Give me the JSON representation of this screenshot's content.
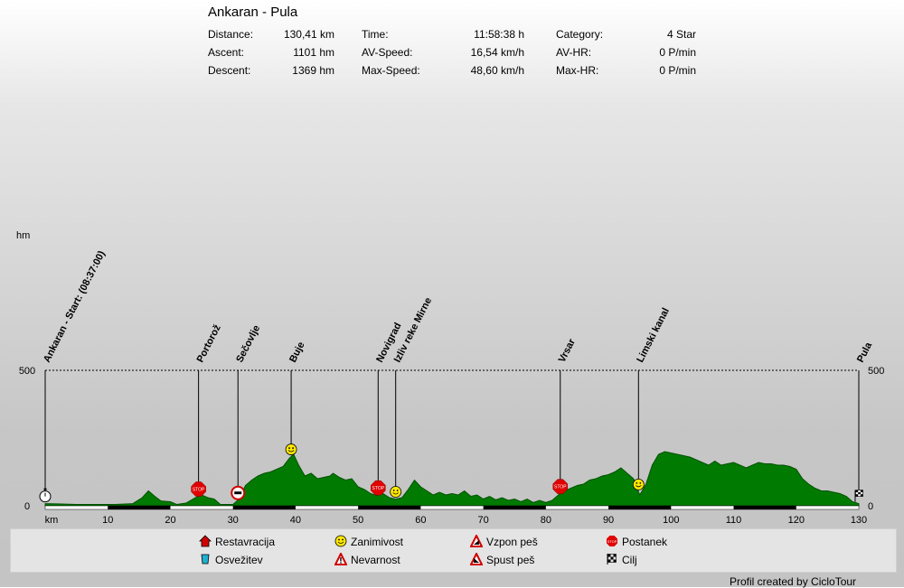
{
  "header": {
    "title": "Ankaran - Pula",
    "stats": [
      {
        "label": "Distance:",
        "value": "130,41 km"
      },
      {
        "label": "Ascent:",
        "value": "1101 hm"
      },
      {
        "label": "Descent:",
        "value": "1369 hm"
      },
      {
        "label": "Time:",
        "value": "11:58:38 h"
      },
      {
        "label": "AV-Speed:",
        "value": "16,54 km/h"
      },
      {
        "label": "Max-Speed:",
        "value": "48,60 km/h"
      },
      {
        "label": "Category:",
        "value": "4 Star"
      },
      {
        "label": "AV-HR:",
        "value": "0 P/min"
      },
      {
        "label": "Max-HR:",
        "value": "0 P/min"
      }
    ]
  },
  "chart_data": {
    "type": "area",
    "ylabel": "hm",
    "xlabel": "km",
    "xlim": [
      0,
      130
    ],
    "ylim": [
      0,
      500
    ],
    "yticks": [
      {
        "value": 0,
        "label": "0"
      },
      {
        "value": 500,
        "label": "500"
      }
    ],
    "xticks": [
      {
        "value": 0,
        "label": "km"
      },
      {
        "value": 10,
        "label": "10"
      },
      {
        "value": 20,
        "label": "20"
      },
      {
        "value": 30,
        "label": "30"
      },
      {
        "value": 40,
        "label": "40"
      },
      {
        "value": 50,
        "label": "50"
      },
      {
        "value": 60,
        "label": "60"
      },
      {
        "value": 70,
        "label": "70"
      },
      {
        "value": 80,
        "label": "80"
      },
      {
        "value": 90,
        "label": "90"
      },
      {
        "value": 100,
        "label": "100"
      },
      {
        "value": 110,
        "label": "110"
      },
      {
        "value": 120,
        "label": "120"
      },
      {
        "value": 130,
        "label": "130"
      }
    ],
    "fill_color": "#007a00",
    "line_color": "#005200",
    "profile": [
      [
        0,
        8
      ],
      [
        2,
        7
      ],
      [
        5,
        5
      ],
      [
        8,
        5
      ],
      [
        11,
        5
      ],
      [
        14,
        8
      ],
      [
        15.5,
        30
      ],
      [
        16.5,
        55
      ],
      [
        17.5,
        35
      ],
      [
        18.5,
        18
      ],
      [
        20,
        15
      ],
      [
        21,
        5
      ],
      [
        22.5,
        10
      ],
      [
        24,
        30
      ],
      [
        25,
        40
      ],
      [
        26,
        30
      ],
      [
        27,
        25
      ],
      [
        28,
        5
      ],
      [
        30,
        5
      ],
      [
        31,
        25
      ],
      [
        32,
        75
      ],
      [
        33,
        95
      ],
      [
        34,
        110
      ],
      [
        35,
        120
      ],
      [
        36,
        125
      ],
      [
        37,
        135
      ],
      [
        38,
        145
      ],
      [
        39,
        175
      ],
      [
        39.7,
        190
      ],
      [
        40.5,
        150
      ],
      [
        41.5,
        110
      ],
      [
        42.5,
        120
      ],
      [
        43.5,
        100
      ],
      [
        44.5,
        105
      ],
      [
        45.5,
        110
      ],
      [
        46,
        120
      ],
      [
        47,
        105
      ],
      [
        48,
        95
      ],
      [
        49,
        100
      ],
      [
        50,
        70
      ],
      [
        51,
        60
      ],
      [
        52,
        45
      ],
      [
        53,
        38
      ],
      [
        54,
        45
      ],
      [
        55,
        30
      ],
      [
        56,
        25
      ],
      [
        57,
        30
      ],
      [
        58,
        60
      ],
      [
        59,
        95
      ],
      [
        60,
        70
      ],
      [
        61,
        55
      ],
      [
        62,
        40
      ],
      [
        63,
        50
      ],
      [
        64,
        40
      ],
      [
        65,
        45
      ],
      [
        66,
        40
      ],
      [
        67,
        55
      ],
      [
        68,
        35
      ],
      [
        69,
        40
      ],
      [
        70,
        25
      ],
      [
        71,
        35
      ],
      [
        72,
        22
      ],
      [
        73,
        30
      ],
      [
        74,
        20
      ],
      [
        75,
        25
      ],
      [
        76,
        15
      ],
      [
        77,
        25
      ],
      [
        78,
        12
      ],
      [
        79,
        20
      ],
      [
        80,
        12
      ],
      [
        81,
        20
      ],
      [
        82,
        40
      ],
      [
        83,
        55
      ],
      [
        84,
        65
      ],
      [
        85,
        75
      ],
      [
        86,
        80
      ],
      [
        87,
        95
      ],
      [
        88,
        100
      ],
      [
        89,
        110
      ],
      [
        90,
        115
      ],
      [
        91,
        125
      ],
      [
        92,
        140
      ],
      [
        93,
        120
      ],
      [
        94,
        100
      ],
      [
        95,
        40
      ],
      [
        96,
        80
      ],
      [
        97,
        150
      ],
      [
        98,
        190
      ],
      [
        99,
        200
      ],
      [
        100,
        195
      ],
      [
        101,
        190
      ],
      [
        102,
        185
      ],
      [
        103,
        180
      ],
      [
        104,
        170
      ],
      [
        105,
        160
      ],
      [
        106,
        150
      ],
      [
        107,
        165
      ],
      [
        108,
        150
      ],
      [
        109,
        155
      ],
      [
        110,
        160
      ],
      [
        111,
        150
      ],
      [
        112,
        140
      ],
      [
        113,
        150
      ],
      [
        114,
        160
      ],
      [
        115,
        155
      ],
      [
        116,
        155
      ],
      [
        117,
        150
      ],
      [
        118,
        150
      ],
      [
        119,
        145
      ],
      [
        120,
        135
      ],
      [
        121,
        100
      ],
      [
        122,
        80
      ],
      [
        123,
        65
      ],
      [
        124,
        55
      ],
      [
        125,
        55
      ],
      [
        126,
        50
      ],
      [
        127,
        45
      ],
      [
        128,
        35
      ],
      [
        129,
        15
      ],
      [
        130,
        8
      ]
    ],
    "markers": [
      {
        "km": 0,
        "label": "Ankaran - Start: (08:37:00)",
        "icon": "start"
      },
      {
        "km": 24.5,
        "label": "Portorož",
        "icon": "stop"
      },
      {
        "km": 30.8,
        "label": "Sečovlje",
        "icon": "border"
      },
      {
        "km": 39.3,
        "label": "Buje",
        "icon": "smiley"
      },
      {
        "km": 53.2,
        "label": "Novigrad",
        "icon": "stop"
      },
      {
        "km": 56,
        "label": "Izliv reke Mirne",
        "icon": "smiley"
      },
      {
        "km": 82.3,
        "label": "Vrsar",
        "icon": "stop"
      },
      {
        "km": 94.8,
        "label": "Limski kanal",
        "icon": "smiley"
      },
      {
        "km": 130,
        "label": "Pula",
        "icon": "finish"
      }
    ]
  },
  "legend": {
    "items": [
      {
        "icon": "restaurant-icon",
        "label": "Restavracija"
      },
      {
        "icon": "refreshment-icon",
        "label": "Osvežitev"
      },
      {
        "icon": "smiley-icon",
        "label": "Zanimivost"
      },
      {
        "icon": "danger-icon",
        "label": "Nevarnost"
      },
      {
        "icon": "push-up-icon",
        "label": "Vzpon peš"
      },
      {
        "icon": "push-down-icon",
        "label": "Spust peš"
      },
      {
        "icon": "stop-icon",
        "label": "Postanek"
      },
      {
        "icon": "finish-flag-icon",
        "label": "Cilj"
      }
    ]
  },
  "footer": "Profil created by CicloTour",
  "colors": {
    "smiley": "#ffe800",
    "stop": "#e00000",
    "area": "#007a00"
  }
}
